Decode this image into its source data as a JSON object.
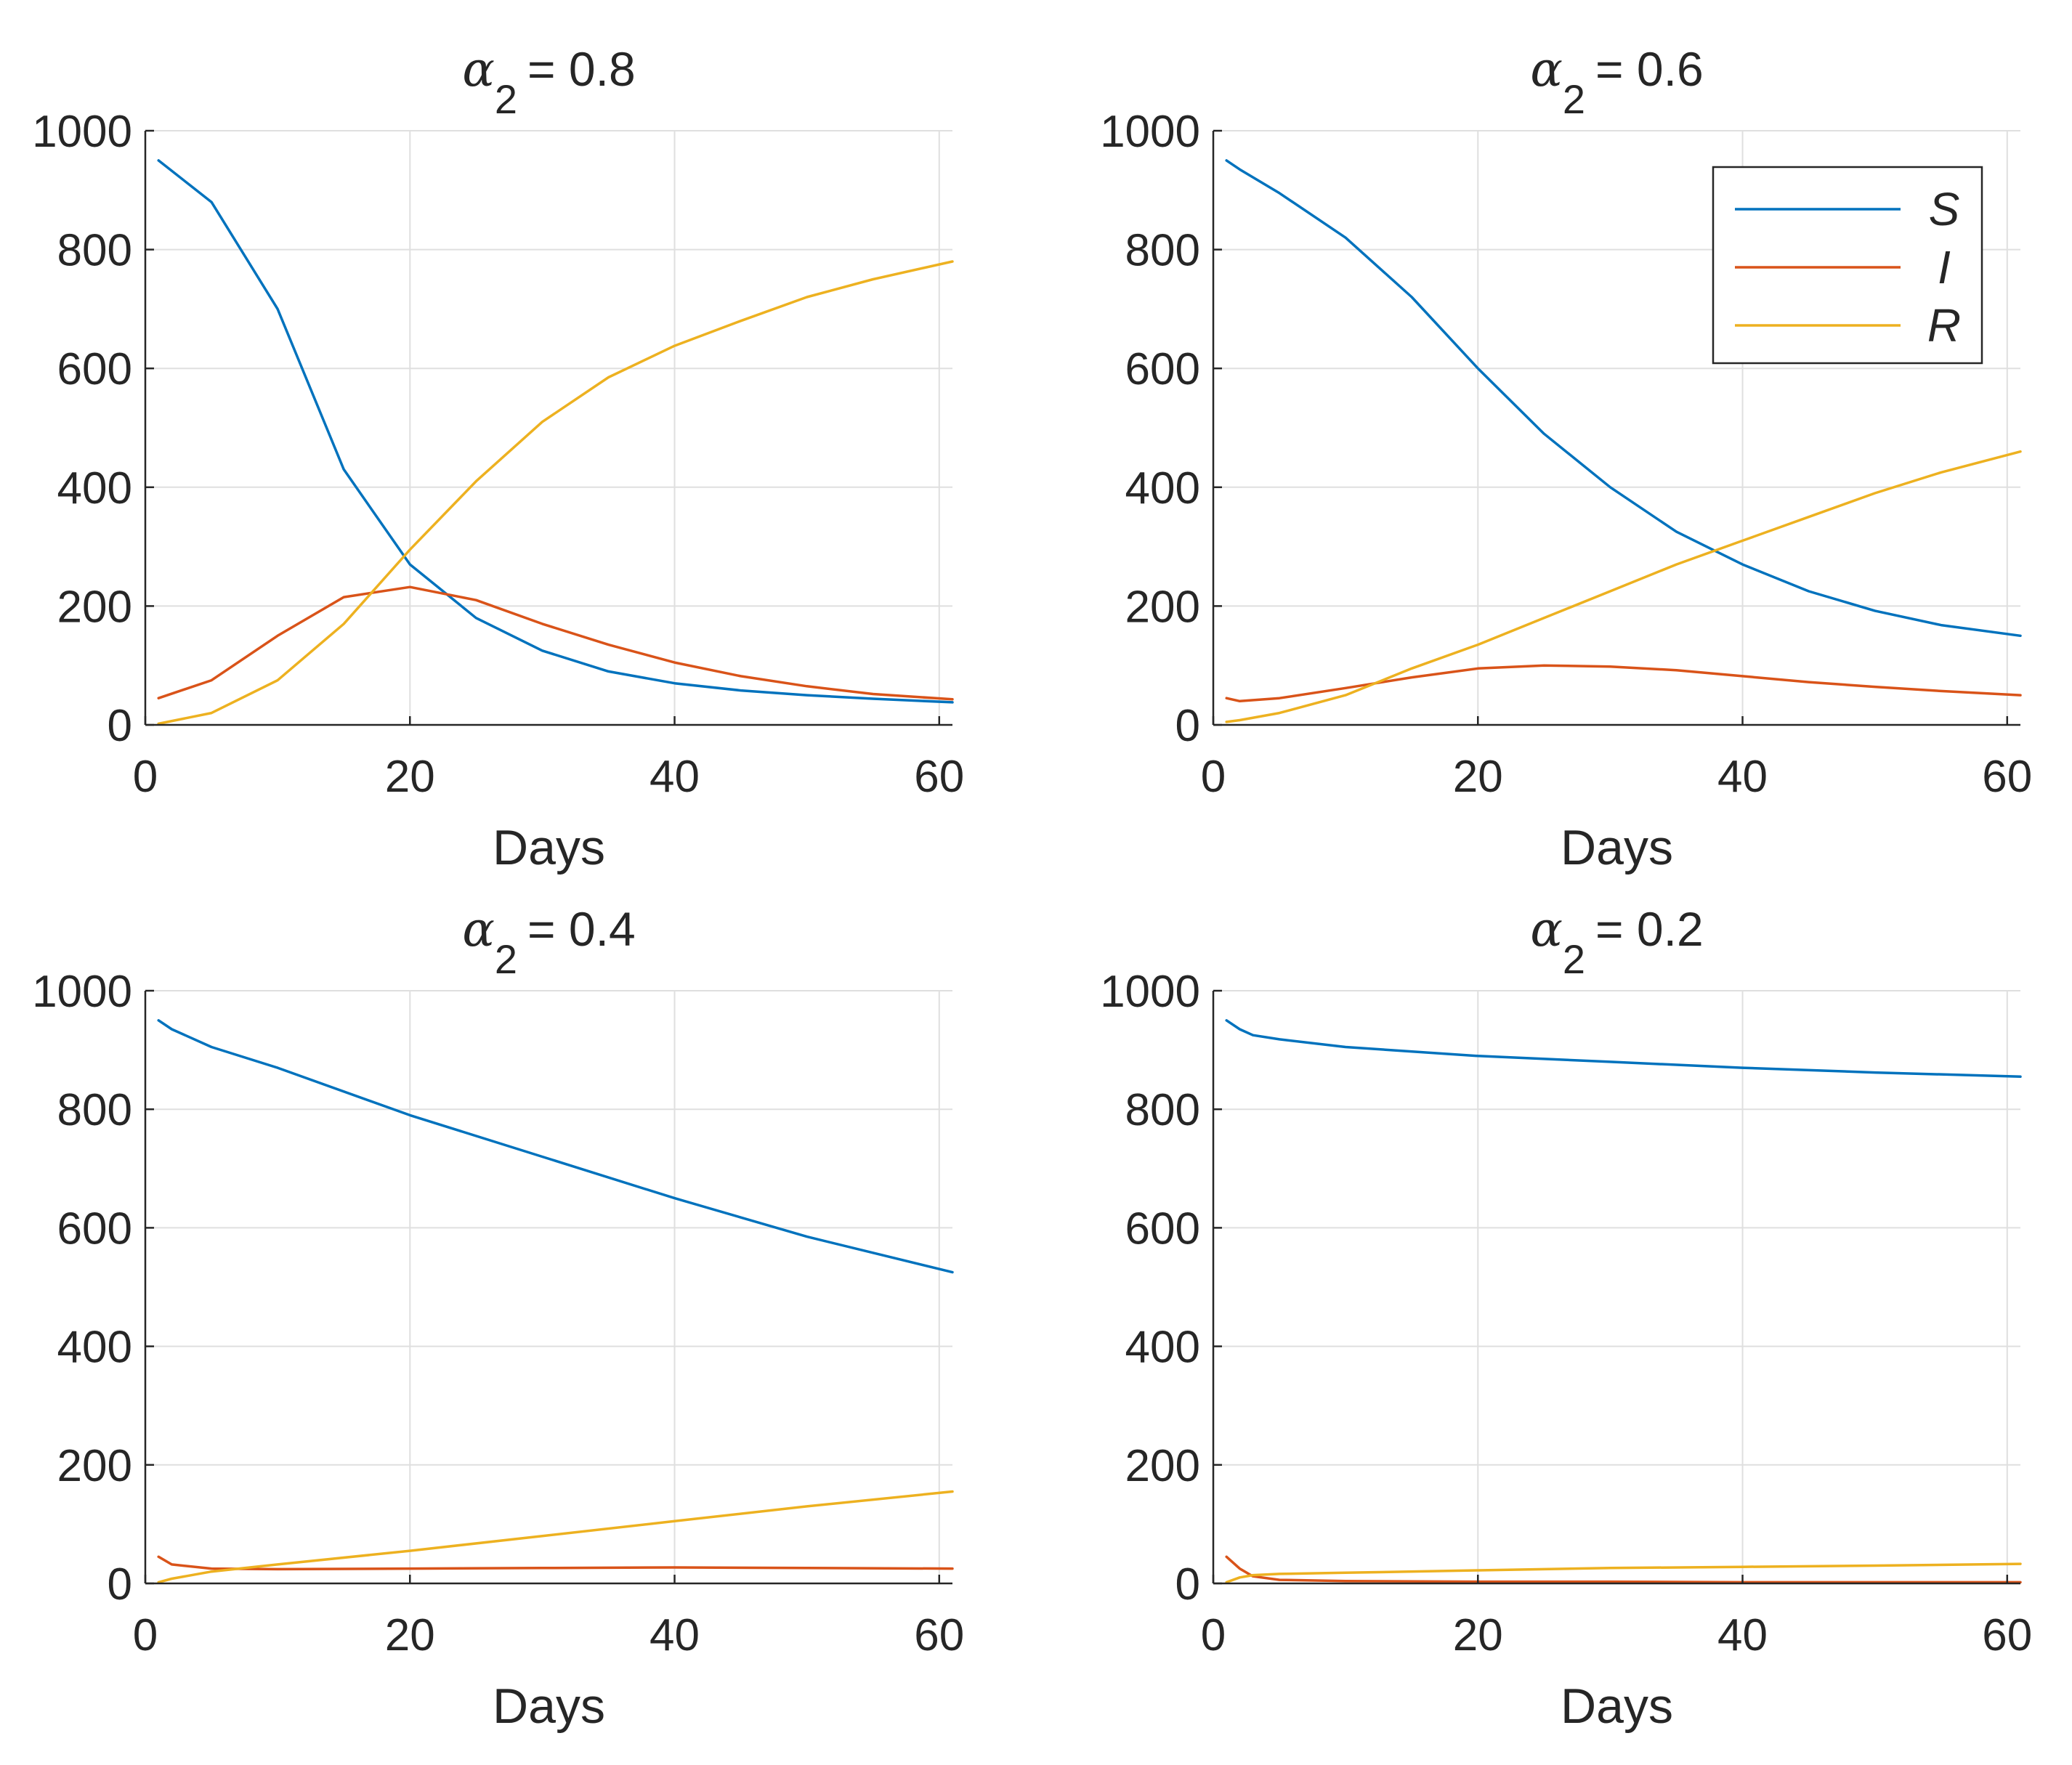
{
  "figure": {
    "description": "Four SIR model subplots for varying alpha_2"
  },
  "legend": {
    "entries": [
      {
        "label": "S",
        "color": "#0072BD"
      },
      {
        "label": "I",
        "color": "#D95319"
      },
      {
        "label": "R",
        "color": "#EDB120"
      }
    ]
  },
  "chart_data": [
    {
      "type": "line",
      "title": "α₂ = 0.8",
      "title_symbol": "α",
      "title_subscript": "2",
      "title_value": "= 0.8",
      "xlabel": "Days",
      "ylabel": "",
      "xlim": [
        0,
        61
      ],
      "ylim": [
        0,
        1000
      ],
      "xticks": [
        "0",
        "20",
        "40",
        "60"
      ],
      "yticks": [
        "0",
        "200",
        "400",
        "600",
        "800",
        "1000"
      ],
      "grid": true,
      "legend": false,
      "x": [
        1,
        5,
        10,
        15,
        20,
        25,
        30,
        35,
        40,
        45,
        50,
        55,
        61
      ],
      "series": [
        {
          "name": "S",
          "values": [
            950,
            880,
            700,
            430,
            270,
            180,
            125,
            90,
            70,
            58,
            50,
            44,
            38
          ]
        },
        {
          "name": "I",
          "values": [
            45,
            75,
            150,
            215,
            232,
            210,
            170,
            135,
            105,
            82,
            65,
            52,
            43
          ]
        },
        {
          "name": "R",
          "values": [
            2,
            20,
            75,
            170,
            295,
            410,
            510,
            585,
            638,
            680,
            720,
            750,
            780
          ]
        }
      ]
    },
    {
      "type": "line",
      "title": "α₂ = 0.6",
      "title_symbol": "α",
      "title_subscript": "2",
      "title_value": "= 0.6",
      "xlabel": "Days",
      "ylabel": "",
      "xlim": [
        0,
        61
      ],
      "ylim": [
        0,
        1000
      ],
      "xticks": [
        "0",
        "20",
        "40",
        "60"
      ],
      "yticks": [
        "0",
        "200",
        "400",
        "600",
        "800",
        "1000"
      ],
      "grid": true,
      "legend": true,
      "legend_position": "top-right",
      "x": [
        1,
        2,
        5,
        10,
        15,
        20,
        25,
        30,
        35,
        40,
        45,
        50,
        55,
        61
      ],
      "series": [
        {
          "name": "S",
          "values": [
            950,
            935,
            895,
            820,
            720,
            600,
            490,
            400,
            325,
            270,
            225,
            192,
            168,
            150
          ]
        },
        {
          "name": "I",
          "values": [
            45,
            40,
            45,
            62,
            80,
            95,
            100,
            98,
            92,
            82,
            72,
            64,
            57,
            50
          ]
        },
        {
          "name": "R",
          "values": [
            5,
            8,
            20,
            50,
            95,
            135,
            180,
            225,
            270,
            310,
            350,
            390,
            425,
            460
          ]
        }
      ]
    },
    {
      "type": "line",
      "title": "α₂ = 0.4",
      "title_symbol": "α",
      "title_subscript": "2",
      "title_value": "= 0.4",
      "xlabel": "Days",
      "ylabel": "",
      "xlim": [
        0,
        61
      ],
      "ylim": [
        0,
        1000
      ],
      "xticks": [
        "0",
        "20",
        "40",
        "60"
      ],
      "yticks": [
        "0",
        "200",
        "400",
        "600",
        "800",
        "1000"
      ],
      "grid": true,
      "legend": false,
      "x": [
        1,
        2,
        5,
        10,
        20,
        30,
        40,
        50,
        61
      ],
      "series": [
        {
          "name": "S",
          "values": [
            950,
            935,
            905,
            870,
            790,
            720,
            650,
            585,
            525
          ]
        },
        {
          "name": "I",
          "values": [
            45,
            32,
            25,
            24,
            25,
            26,
            27,
            26,
            25
          ]
        },
        {
          "name": "R",
          "values": [
            2,
            8,
            20,
            32,
            55,
            80,
            105,
            130,
            155
          ]
        }
      ]
    },
    {
      "type": "line",
      "title": "α₂ = 0.2",
      "title_symbol": "α",
      "title_subscript": "2",
      "title_value": "= 0.2",
      "xlabel": "Days",
      "ylabel": "",
      "xlim": [
        0,
        61
      ],
      "ylim": [
        0,
        1000
      ],
      "xticks": [
        "0",
        "20",
        "40",
        "60"
      ],
      "yticks": [
        "0",
        "200",
        "400",
        "600",
        "800",
        "1000"
      ],
      "grid": true,
      "legend": false,
      "x": [
        1,
        2,
        3,
        5,
        10,
        20,
        30,
        40,
        50,
        61
      ],
      "series": [
        {
          "name": "S",
          "values": [
            950,
            935,
            925,
            918,
            905,
            890,
            880,
            870,
            862,
            855
          ]
        },
        {
          "name": "I",
          "values": [
            45,
            25,
            12,
            6,
            4,
            3,
            3,
            2,
            2,
            2
          ]
        },
        {
          "name": "R",
          "values": [
            2,
            10,
            14,
            16,
            18,
            22,
            26,
            28,
            30,
            33
          ]
        }
      ]
    }
  ]
}
